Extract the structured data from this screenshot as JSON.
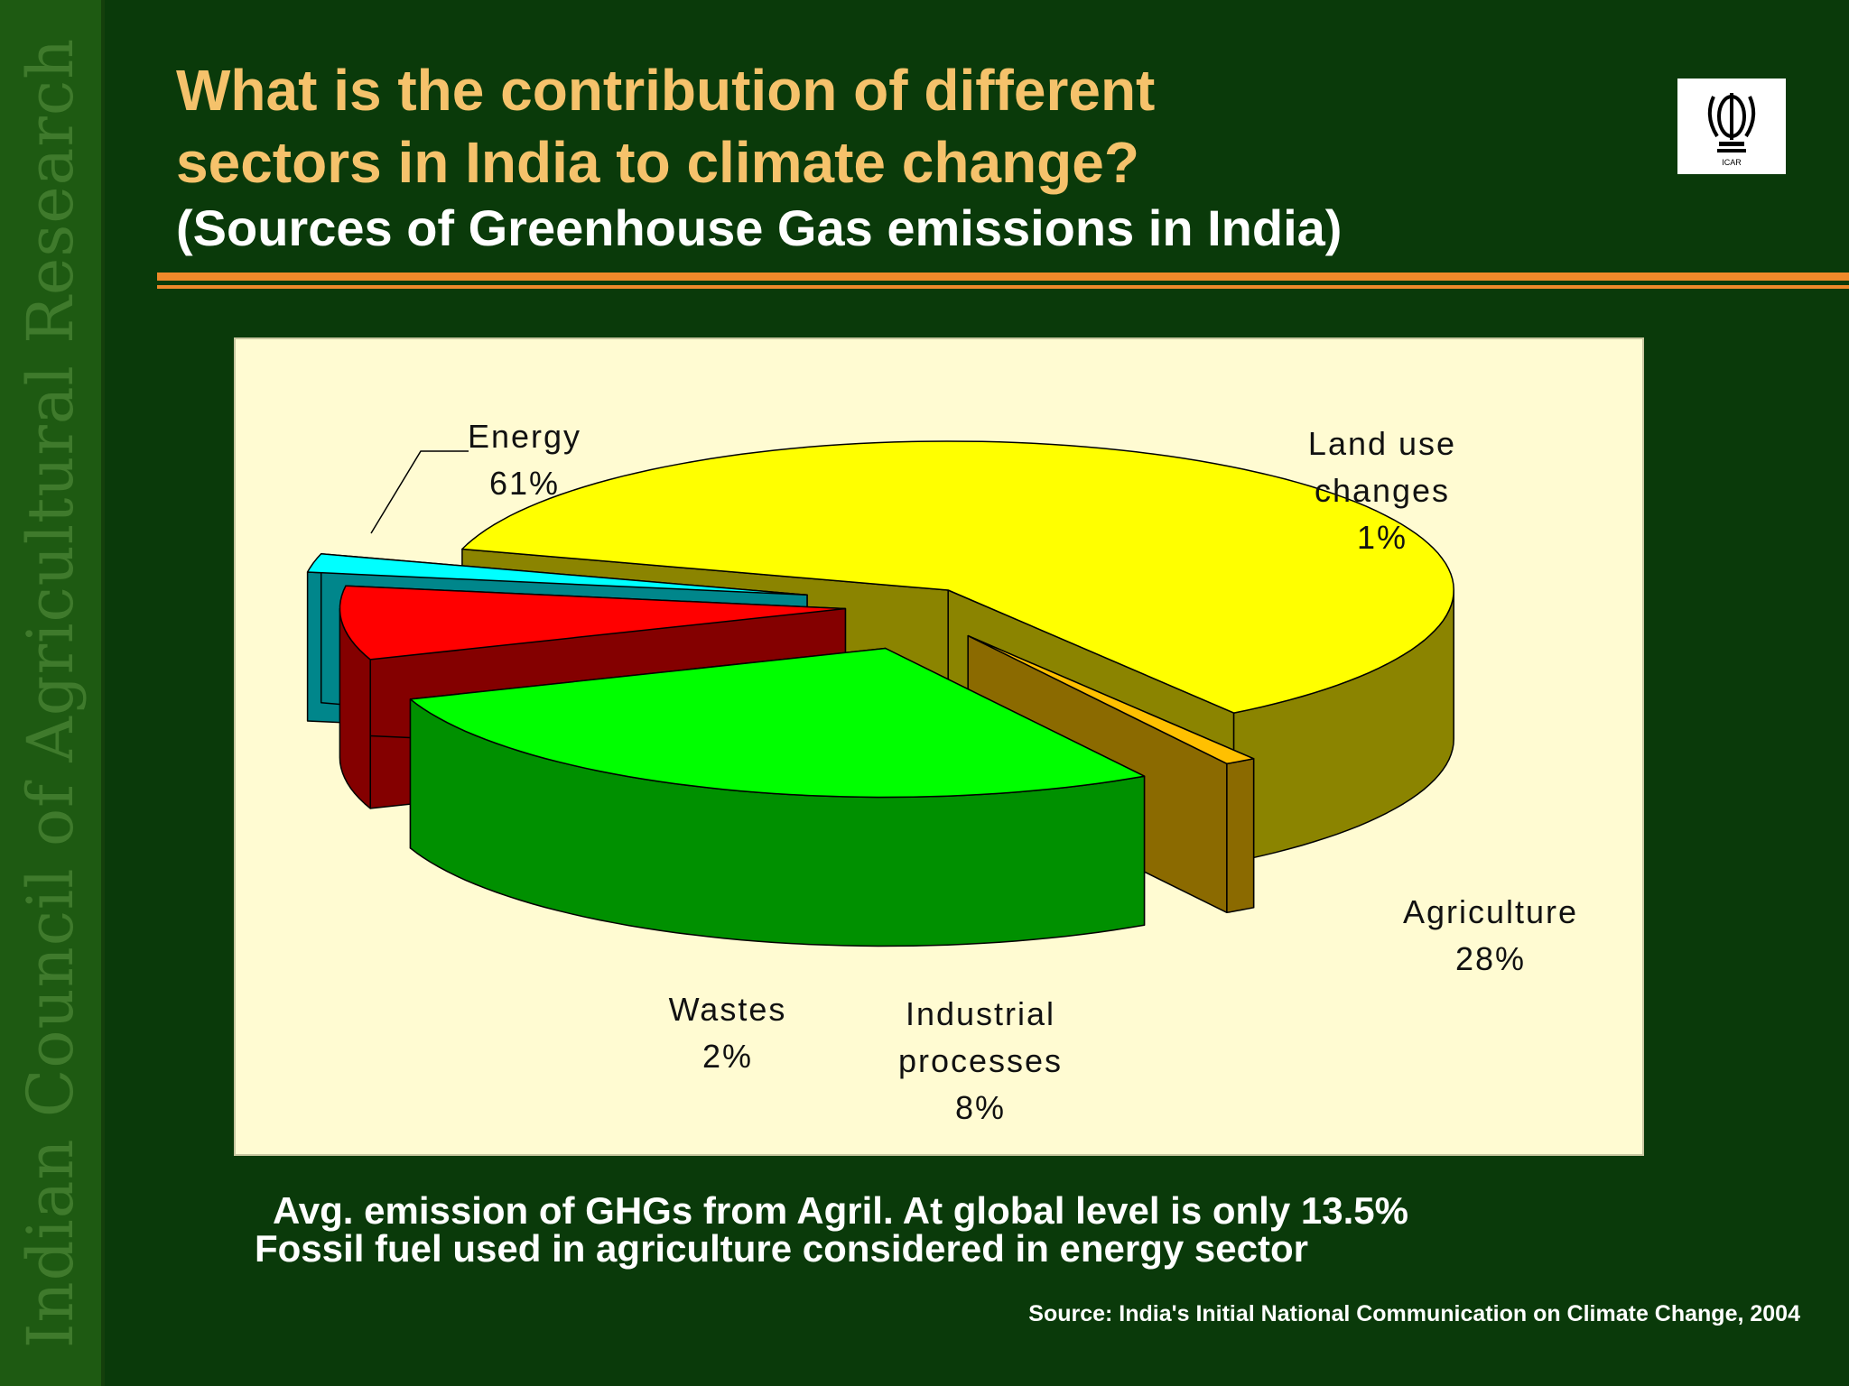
{
  "side_text": "Indian Council of Agricultural Research",
  "title_line1": "What is the contribution of different",
  "title_line2": "sectors in India to climate change?",
  "subtitle": "(Sources of Greenhouse Gas emissions in India)",
  "logo_text": "ICAR",
  "notes": [
    "Avg. emission of GHGs from Agril. At global level is only 13.5%",
    "Fossil fuel used in agriculture considered in energy sector"
  ],
  "source": "Source: India's Initial National Communication on Climate Change, 2004",
  "colors": {
    "background": "#0a3a0a",
    "title": "#f5c26b",
    "rule": "#f0892a",
    "chart_bg": "#fffbd2"
  },
  "chart_data": {
    "type": "pie",
    "style": "3d-exploded",
    "categories": [
      "Energy",
      "Land use changes",
      "Agriculture",
      "Industrial processes",
      "Wastes"
    ],
    "values": [
      61,
      1,
      28,
      8,
      2
    ],
    "unit": "%",
    "labels": [
      [
        "Energy",
        "61%"
      ],
      [
        "Land use",
        "changes",
        "1%"
      ],
      [
        "Agriculture",
        "28%"
      ],
      [
        "Industrial",
        "processes",
        "8%"
      ],
      [
        "Wastes",
        "2%"
      ]
    ],
    "colors": [
      "#ffff00",
      "#ffc000",
      "#00ff00",
      "#ff0000",
      "#00ffff"
    ],
    "side_colors": [
      "#8b8400",
      "#8b6a00",
      "#009000",
      "#840000",
      "#00868b"
    ],
    "legend": "none"
  }
}
